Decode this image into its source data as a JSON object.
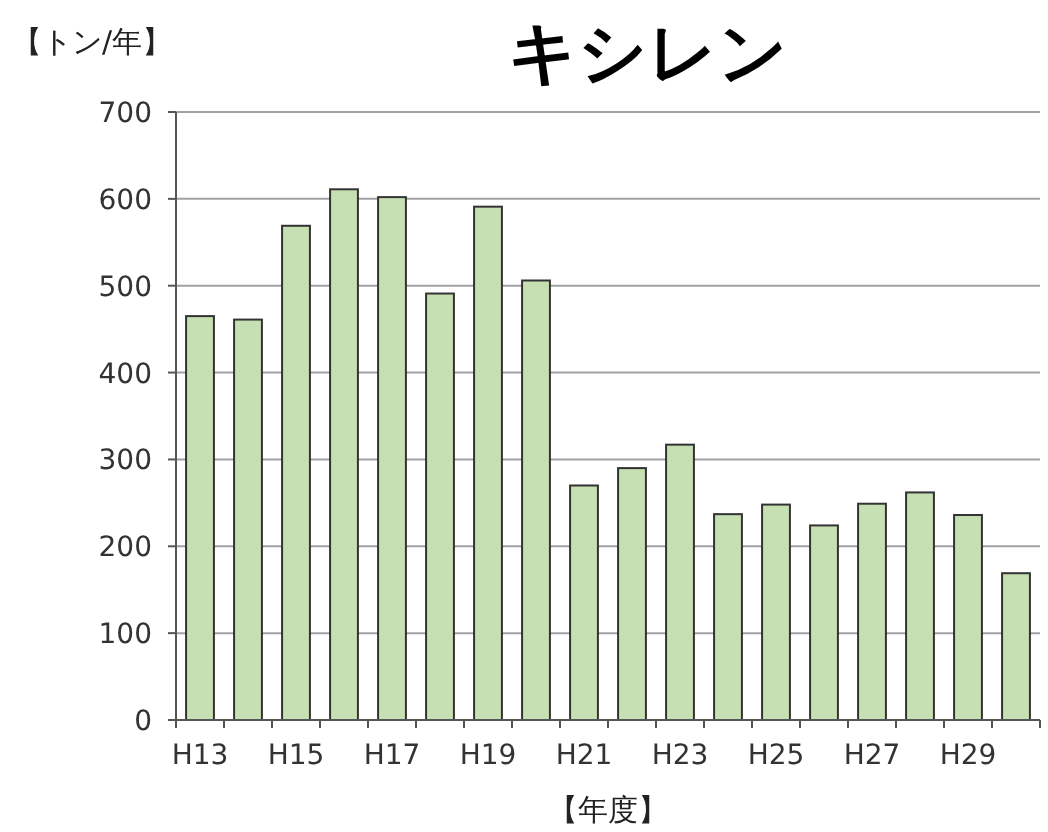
{
  "chart_data": {
    "type": "bar",
    "title": "キシレン",
    "ylabel": "【トン/年】",
    "xlabel": "【年度】",
    "categories": [
      "H13",
      null,
      "H15",
      null,
      "H17",
      null,
      "H19",
      null,
      "H21",
      null,
      "H23",
      null,
      "H25",
      null,
      "H27",
      null,
      "H29",
      null
    ],
    "values": [
      465,
      461,
      569,
      611,
      602,
      491,
      591,
      506,
      270,
      290,
      317,
      237,
      248,
      224,
      249,
      262,
      236,
      169
    ],
    "color": "#c6e0b4",
    "ylim": [
      0,
      700
    ],
    "yticks": [
      0,
      100,
      200,
      300,
      400,
      500,
      600,
      700
    ],
    "grid": "y"
  }
}
